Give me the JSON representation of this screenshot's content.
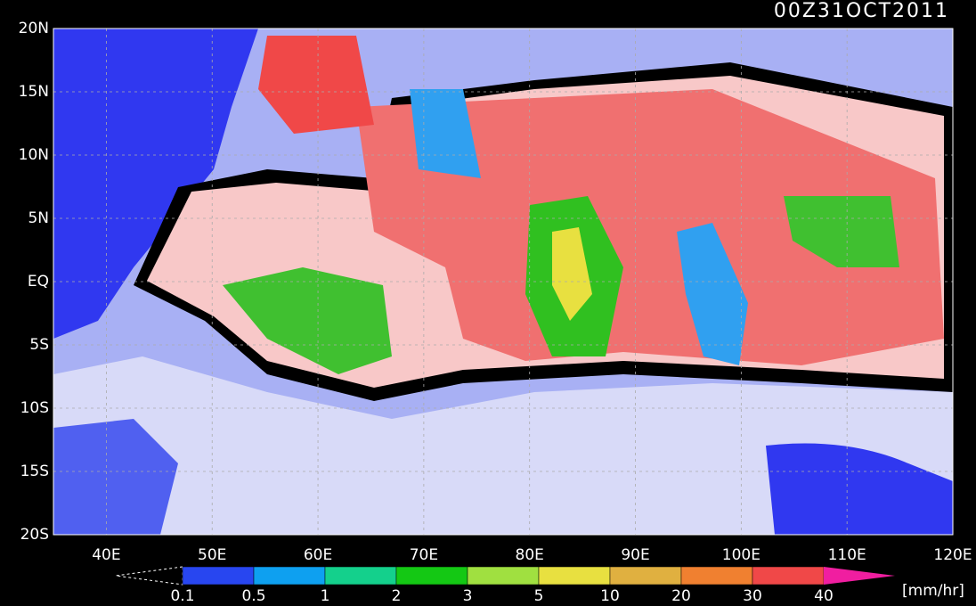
{
  "header": {
    "title": "00Z31OCT2011"
  },
  "map": {
    "lat_labels": [
      "20N",
      "15N",
      "10N",
      "5N",
      "EQ",
      "5S",
      "10S",
      "15S",
      "20S"
    ],
    "lon_labels": [
      "40E",
      "50E",
      "60E",
      "70E",
      "80E",
      "90E",
      "100E",
      "110E",
      "120E"
    ]
  },
  "colorbar": {
    "labels": [
      "0.1",
      "0.5",
      "1",
      "2",
      "3",
      "5",
      "10",
      "20",
      "30",
      "40"
    ],
    "under_color": "#000000",
    "colors": [
      "#2846f0",
      "#0ea0f0",
      "#14d08c",
      "#14c814",
      "#a0e040",
      "#e8e040",
      "#e0b040",
      "#f08030",
      "#f04848"
    ],
    "over_color": "#f01ea0",
    "unit": "[mm/hr]"
  }
}
